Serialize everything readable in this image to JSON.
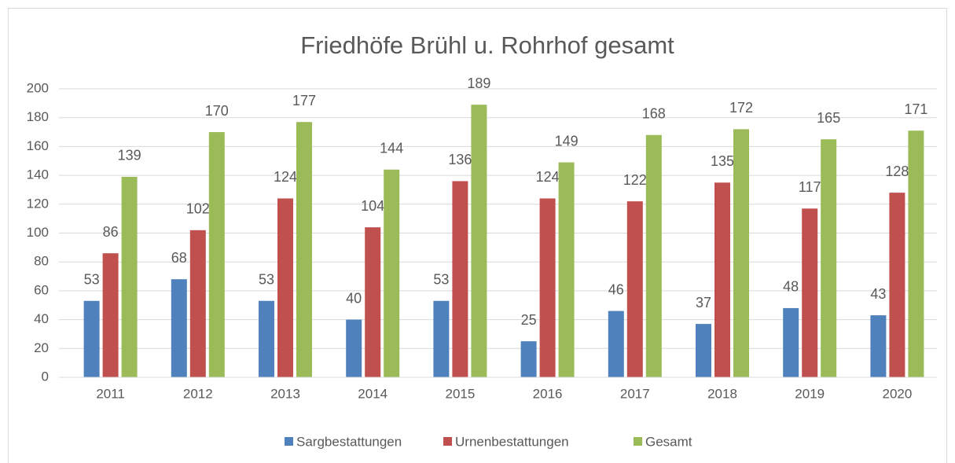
{
  "chart_data": {
    "type": "bar",
    "title": "Friedhöfe Brühl u. Rohrhof gesamt",
    "categories": [
      "2011",
      "2012",
      "2013",
      "2014",
      "2015",
      "2016",
      "2017",
      "2018",
      "2019",
      "2020"
    ],
    "series": [
      {
        "name": "Sargbestattungen",
        "color": "#4f81bd",
        "values": [
          53,
          68,
          53,
          40,
          53,
          25,
          46,
          37,
          48,
          43
        ]
      },
      {
        "name": "Urnenbestattungen",
        "color": "#c0504d",
        "values": [
          86,
          102,
          124,
          104,
          136,
          124,
          122,
          135,
          117,
          128
        ]
      },
      {
        "name": "Gesamt",
        "color": "#9bbb59",
        "values": [
          139,
          170,
          177,
          144,
          189,
          149,
          168,
          172,
          165,
          171
        ]
      }
    ],
    "ylim": [
      0,
      200
    ],
    "yticks": [
      0,
      20,
      40,
      60,
      80,
      100,
      120,
      140,
      160,
      180,
      200
    ],
    "grid": true,
    "legend": "bottom"
  }
}
